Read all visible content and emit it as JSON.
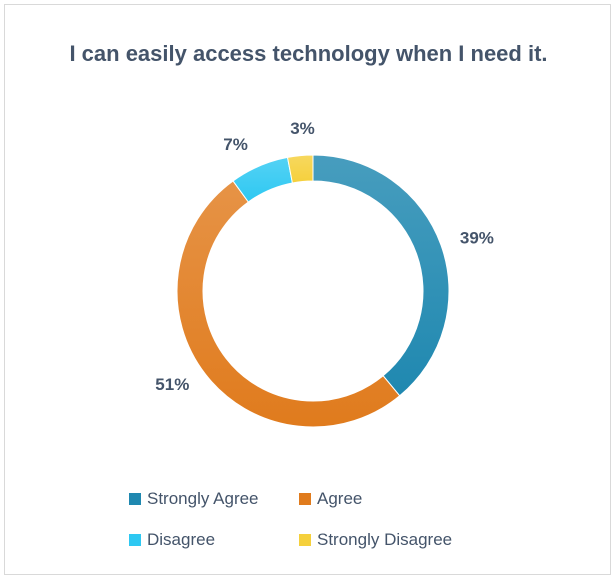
{
  "chart_data": {
    "type": "pie",
    "style": "donut",
    "title": "I can easily access technology when I need it.",
    "categories": [
      "Strongly Agree",
      "Agree",
      "Disagree",
      "Strongly Disagree"
    ],
    "values": [
      39,
      51,
      7,
      3
    ],
    "labels": [
      "39%",
      "51%",
      "7%",
      "3%"
    ],
    "colors": [
      "#1f88b0",
      "#e07b1d",
      "#2ec8f2",
      "#f5d03c"
    ],
    "legend": "bottom",
    "start_angle_deg": 0,
    "direction": "clockwise"
  }
}
